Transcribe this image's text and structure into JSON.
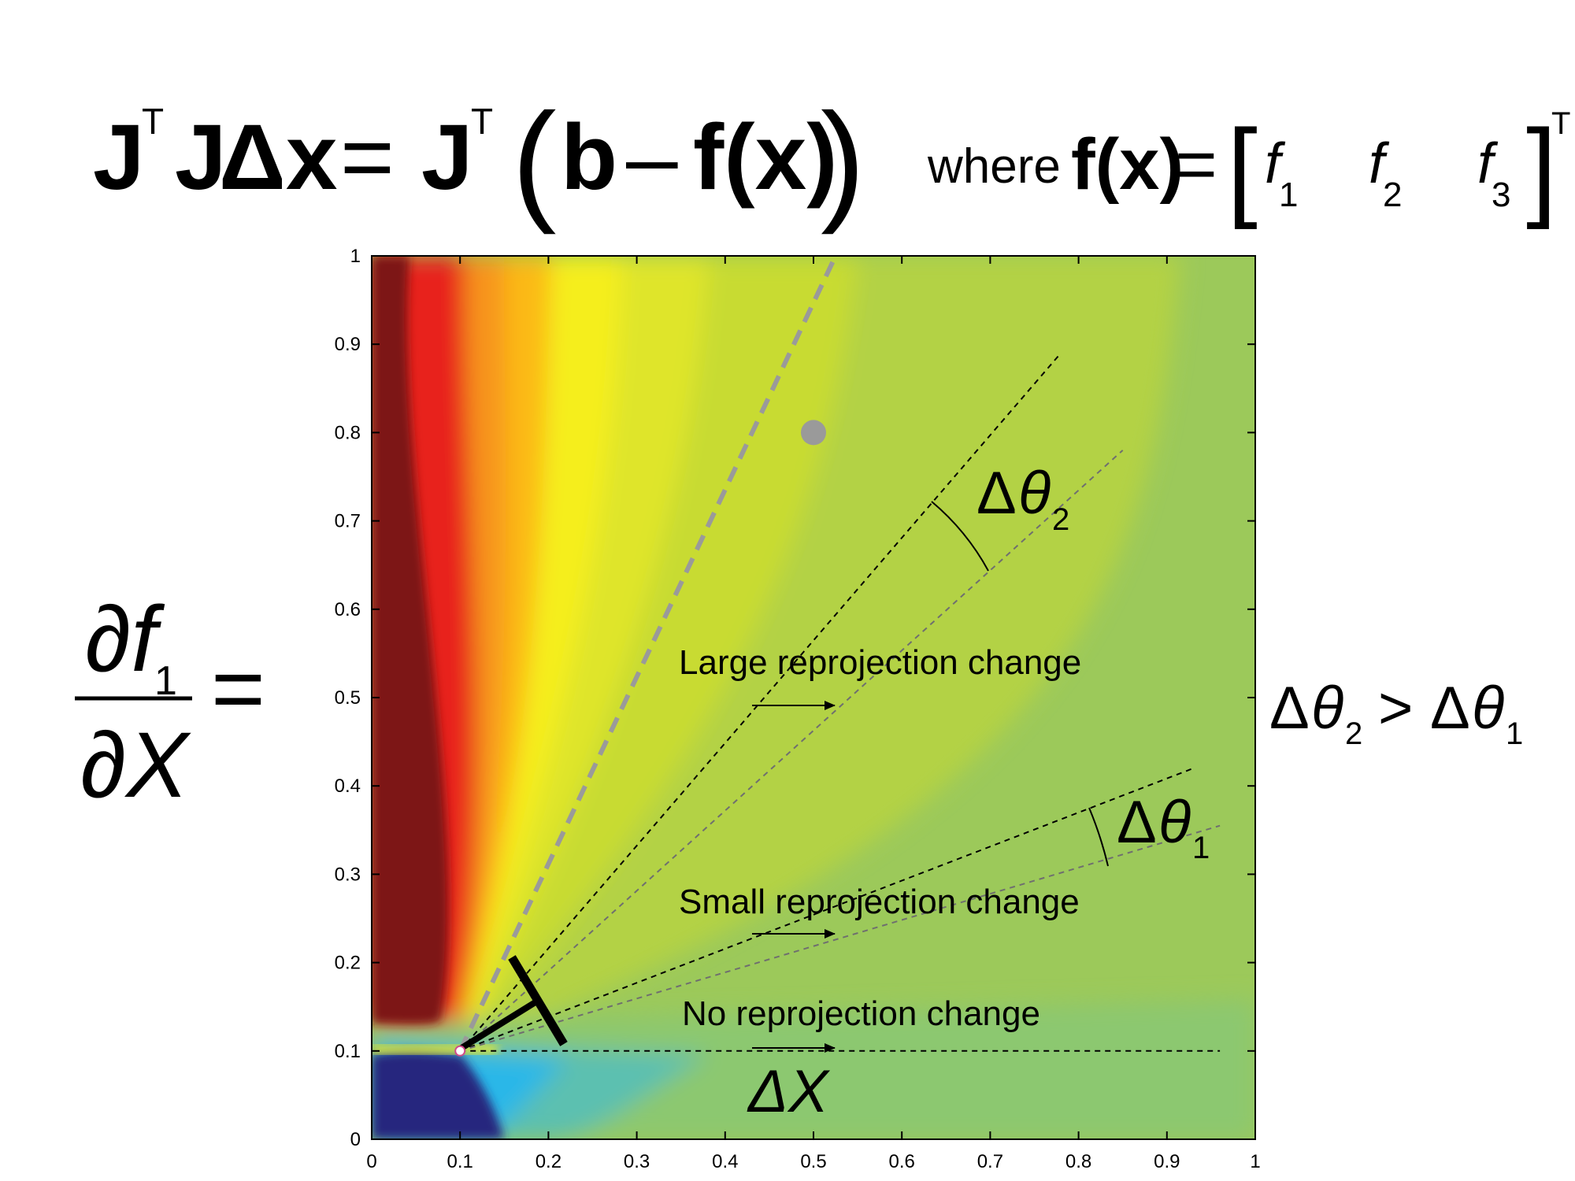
{
  "equation": {
    "J": "J",
    "transpose": "T",
    "delta_x": "Δx",
    "equals": "=",
    "open_paren": "(",
    "b": "b",
    "minus": "–",
    "fx": "f(x)",
    "close_paren": ")",
    "where": "where",
    "f_vector_label": "f(x)",
    "open_bracket": "[",
    "close_bracket": "]",
    "f1": "f",
    "f1_sub": "1",
    "f2": "f",
    "f2_sub": "2",
    "f3": "f",
    "f3_sub": "3"
  },
  "derivative": {
    "numerator": "∂f",
    "numerator_sub": "1",
    "denominator": "∂X",
    "equals": "="
  },
  "comparison": {
    "delta": "Δ",
    "theta": "θ",
    "sub_left": "2",
    "operator": ">",
    "sub_right": "1"
  },
  "chart_data": {
    "type": "heatmap",
    "xlim": [
      0,
      1
    ],
    "ylim": [
      0,
      1
    ],
    "x_ticks": [
      "0",
      "0.1",
      "0.2",
      "0.3",
      "0.4",
      "0.5",
      "0.6",
      "0.7",
      "0.8",
      "0.9",
      "1"
    ],
    "y_ticks": [
      "0",
      "0.1",
      "0.2",
      "0.3",
      "0.4",
      "0.5",
      "0.6",
      "0.7",
      "0.8",
      "0.9",
      "1"
    ],
    "camera_point": {
      "x": 0.1,
      "y": 0.1
    },
    "target_point": {
      "x": 0.5,
      "y": 0.8
    },
    "colors": {
      "dark_red": "#7d1517",
      "red": "#e8201e",
      "orange": "#f7941d",
      "yellow": "#f5ee1c",
      "yellow_green": "#c5d935",
      "green": "#9cc95a",
      "cyan": "#2ab7e8",
      "navy": "#28287e",
      "target": "#9a9a9a"
    },
    "rays": [
      {
        "from": [
          0.1,
          0.1
        ],
        "to": [
          0.525,
          1.0
        ],
        "style": "gray-dashed-thick"
      },
      {
        "from": [
          0.1,
          0.1
        ],
        "to": [
          0.78,
          0.89
        ],
        "style": "black-dashed"
      },
      {
        "from": [
          0.1,
          0.1
        ],
        "to": [
          0.85,
          0.78
        ],
        "style": "gray-dashed"
      },
      {
        "from": [
          0.1,
          0.1
        ],
        "to": [
          0.93,
          0.42
        ],
        "style": "black-dashed"
      },
      {
        "from": [
          0.1,
          0.1
        ],
        "to": [
          0.96,
          0.355
        ],
        "style": "gray-dashed"
      },
      {
        "from": [
          0.1,
          0.1
        ],
        "to": [
          0.96,
          0.1
        ],
        "style": "black-dashed"
      }
    ],
    "annotations": {
      "large": "Large reprojection change",
      "small": "Small reprojection change",
      "none": "No reprojection change",
      "dtheta2_delta": "Δ",
      "dtheta2_theta": "θ",
      "dtheta2_sub": "2",
      "dtheta1_delta": "Δ",
      "dtheta1_theta": "θ",
      "dtheta1_sub": "1",
      "delta_x": "ΔX"
    }
  }
}
